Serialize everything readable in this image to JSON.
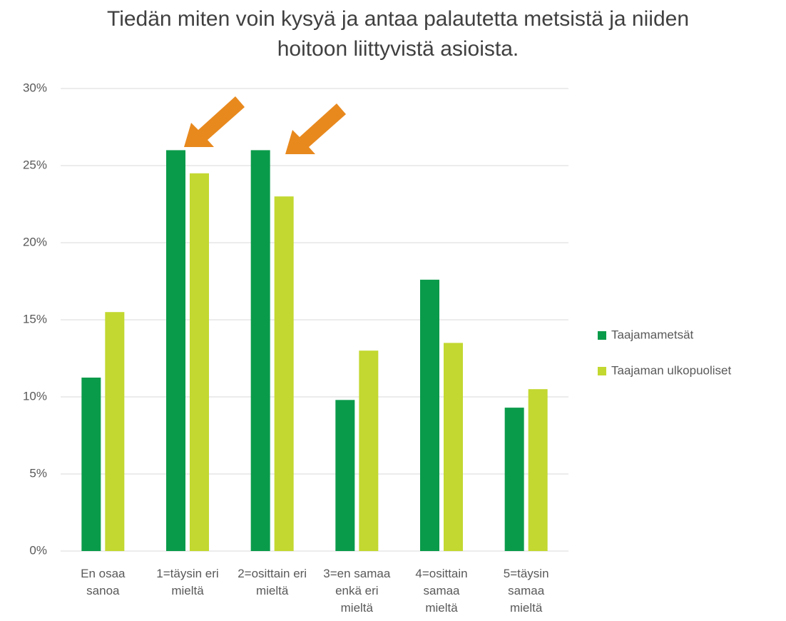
{
  "chart_data": {
    "type": "bar",
    "title": "Tiedän miten voin kysyä ja antaa palautetta metsistä ja niiden hoitoon liittyvistä asioista.",
    "categories": [
      "En osaa sanoa",
      "1=täysin eri mieltä",
      "2=osittain eri mieltä",
      "3=en samaa enkä eri mieltä",
      "4=osittain samaa mieltä",
      "5=täysin samaa mieltä"
    ],
    "series": [
      {
        "name": "Taajamametsät",
        "color": "#0a9b4a",
        "values": [
          11.25,
          26.0,
          26.0,
          9.8,
          17.6,
          9.3
        ]
      },
      {
        "name": "Taajaman ulkopuoliset",
        "color": "#c3d830",
        "values": [
          15.5,
          24.5,
          23.0,
          13.0,
          13.5,
          10.5
        ]
      }
    ],
    "ylim": [
      0,
      30
    ],
    "yticks": [
      {
        "value": 0,
        "label": "0%"
      },
      {
        "value": 5,
        "label": "5%"
      },
      {
        "value": 10,
        "label": "10%"
      },
      {
        "value": 15,
        "label": "15%"
      },
      {
        "value": 20,
        "label": "20%"
      },
      {
        "value": 25,
        "label": "25%"
      },
      {
        "value": 30,
        "label": "30%"
      }
    ],
    "grid": true,
    "legend": "right"
  }
}
